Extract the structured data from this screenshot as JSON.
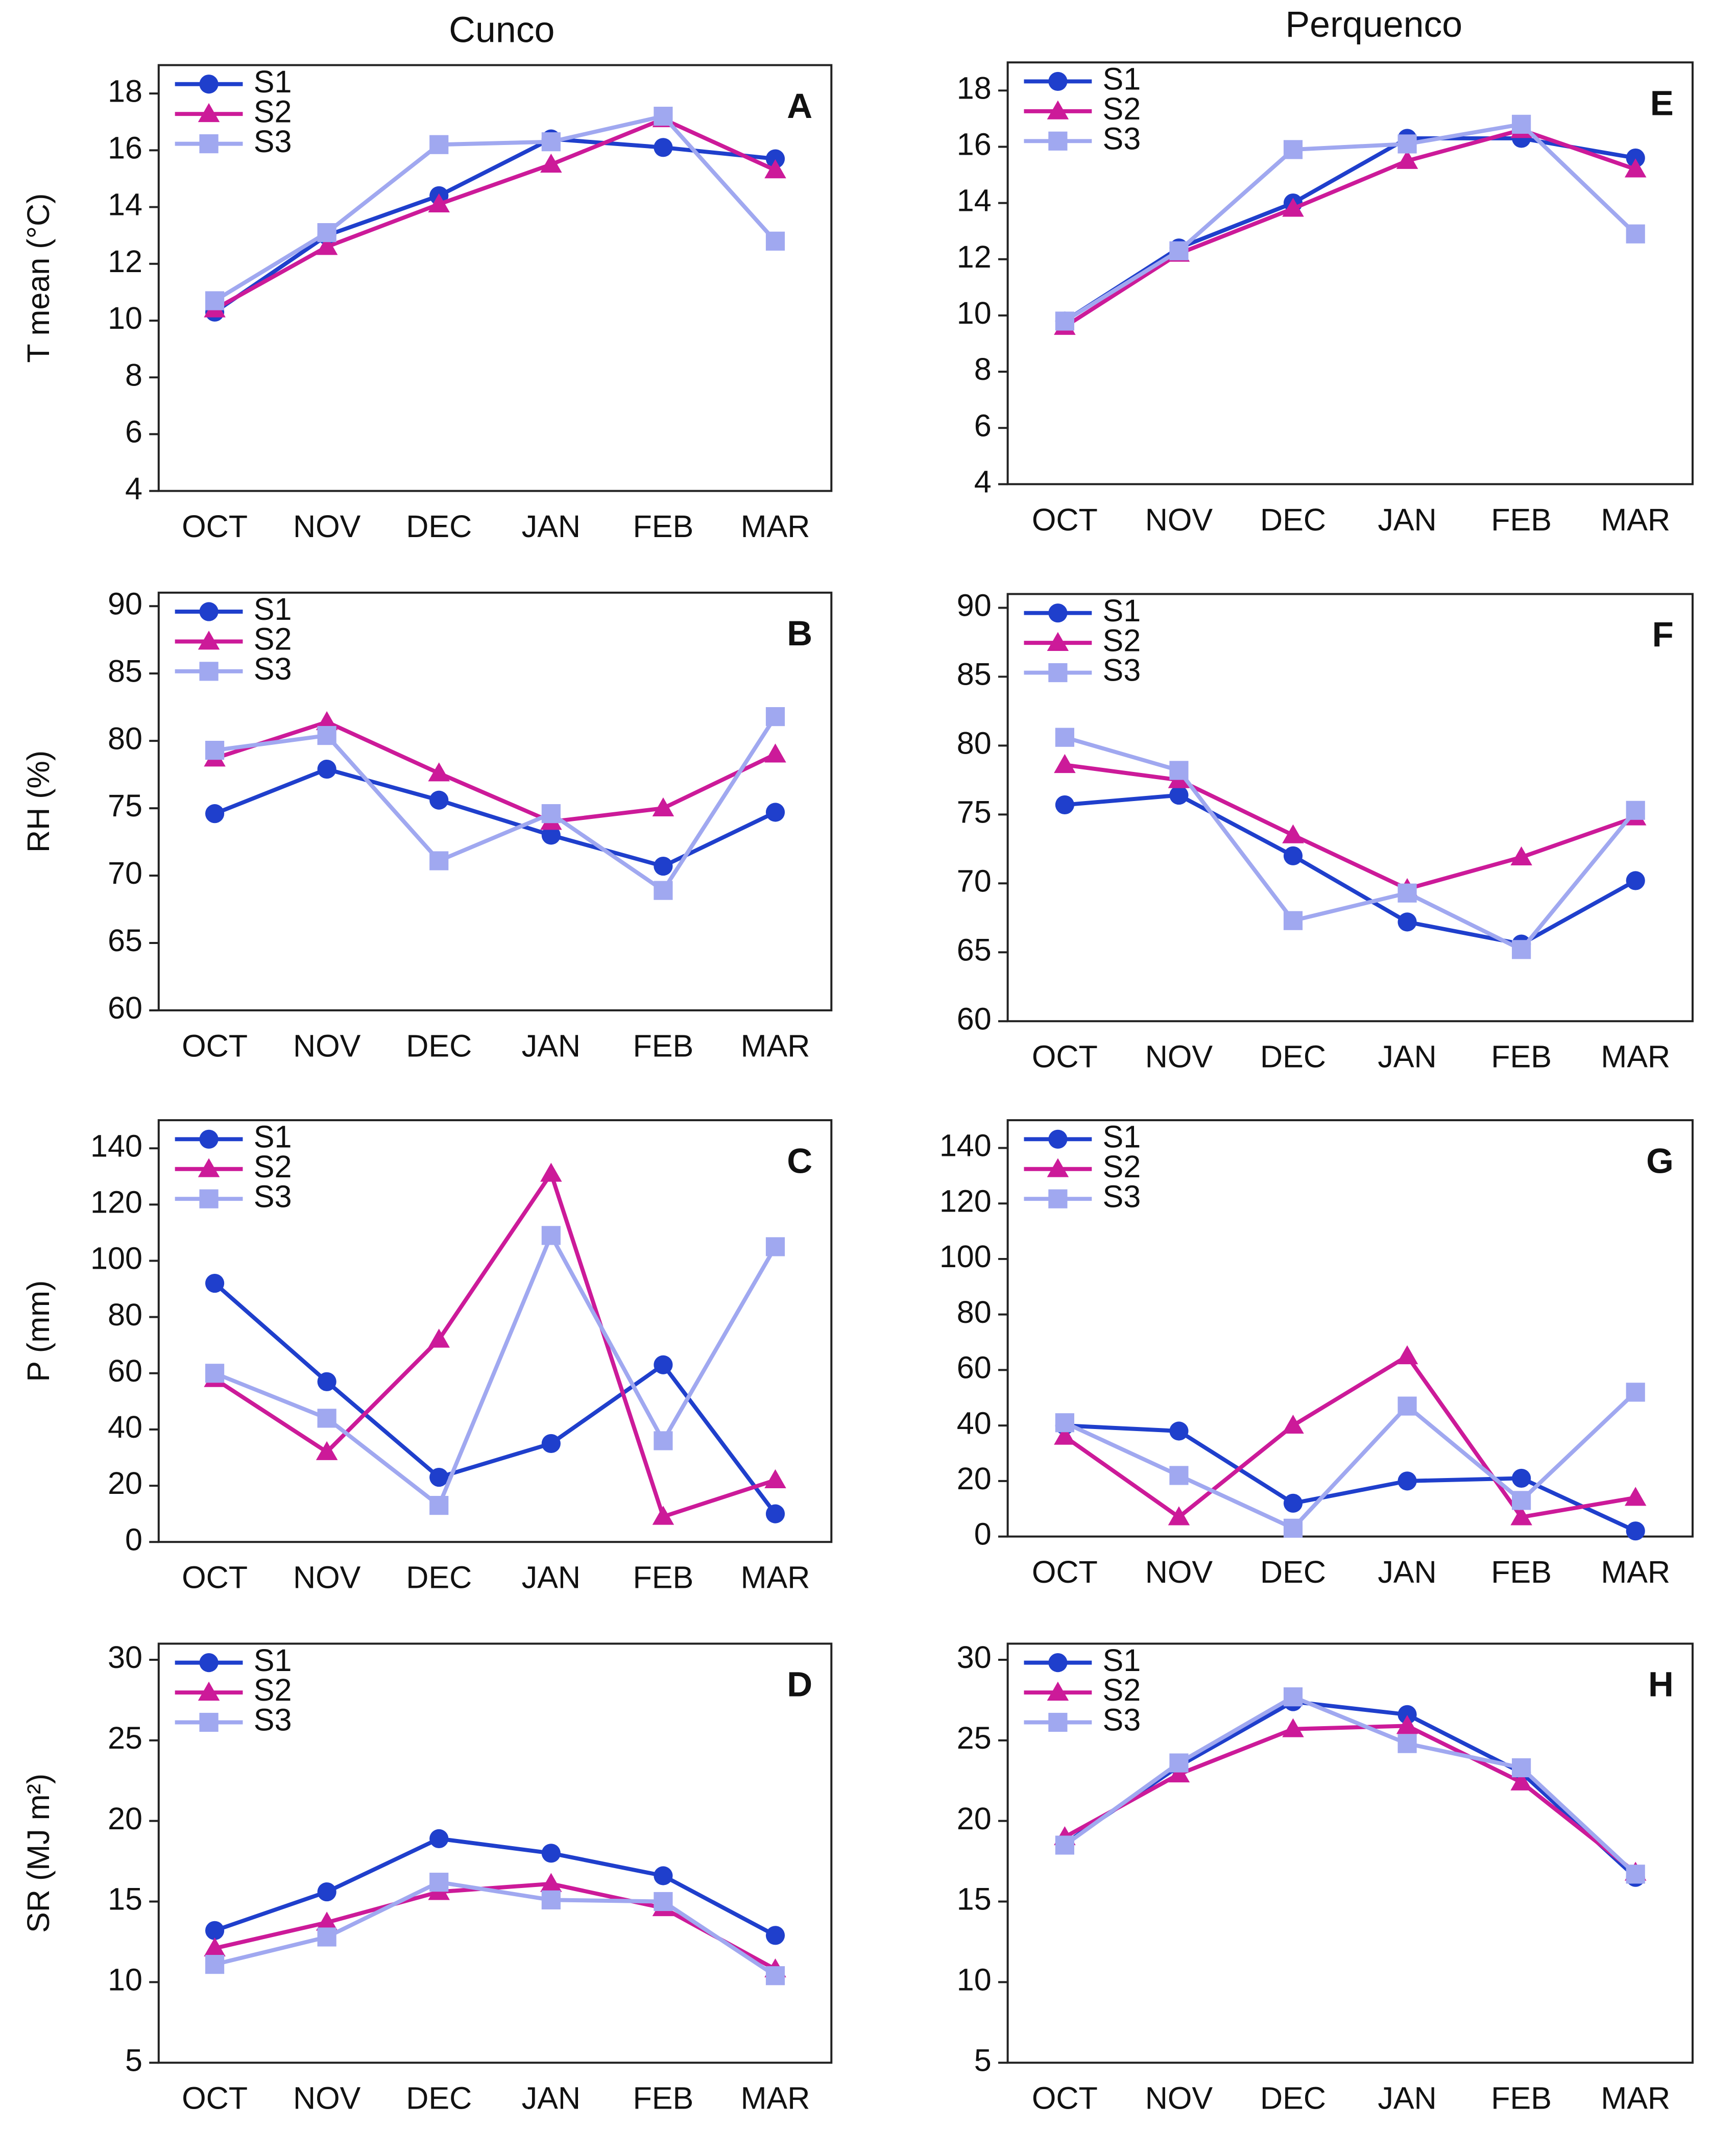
{
  "columns": [
    "Cunco",
    "Perquenco"
  ],
  "chart_data": [
    {
      "type": "line",
      "label": "A",
      "ylabel": "T mean (°C)",
      "categories": [
        "OCT",
        "NOV",
        "DEC",
        "JAN",
        "FEB",
        "MAR"
      ],
      "ylim": [
        4,
        19
      ],
      "yticks": [
        4,
        6,
        8,
        10,
        12,
        14,
        16,
        18
      ],
      "series": [
        {
          "name": "S1",
          "color": "#1f3fcc",
          "marker": "circle",
          "values": [
            10.3,
            13.0,
            14.4,
            16.4,
            16.1,
            15.7
          ]
        },
        {
          "name": "S2",
          "color": "#cc1a99",
          "marker": "triangle",
          "values": [
            10.4,
            12.6,
            14.1,
            15.5,
            17.1,
            15.3
          ]
        },
        {
          "name": "S3",
          "color": "#a0a8f0",
          "marker": "square",
          "values": [
            10.7,
            13.1,
            16.2,
            16.3,
            17.2,
            12.8
          ]
        }
      ]
    },
    {
      "type": "line",
      "label": "E",
      "categories": [
        "OCT",
        "NOV",
        "DEC",
        "JAN",
        "FEB",
        "MAR"
      ],
      "ylim": [
        4,
        19
      ],
      "yticks": [
        4,
        6,
        8,
        10,
        12,
        14,
        16,
        18
      ],
      "series": [
        {
          "name": "S1",
          "color": "#1f3fcc",
          "marker": "circle",
          "values": [
            9.8,
            12.4,
            14.0,
            16.3,
            16.3,
            15.6
          ]
        },
        {
          "name": "S2",
          "color": "#cc1a99",
          "marker": "triangle",
          "values": [
            9.6,
            12.2,
            13.8,
            15.5,
            16.6,
            15.2
          ]
        },
        {
          "name": "S3",
          "color": "#a0a8f0",
          "marker": "square",
          "values": [
            9.8,
            12.3,
            15.9,
            16.1,
            16.8,
            12.9
          ]
        }
      ]
    },
    {
      "type": "line",
      "label": "B",
      "ylabel": "RH (%)",
      "categories": [
        "OCT",
        "NOV",
        "DEC",
        "JAN",
        "FEB",
        "MAR"
      ],
      "ylim": [
        60,
        91
      ],
      "yticks": [
        60,
        65,
        70,
        75,
        80,
        85,
        90
      ],
      "series": [
        {
          "name": "S1",
          "color": "#1f3fcc",
          "marker": "circle",
          "values": [
            74.6,
            77.9,
            75.6,
            73.0,
            70.7,
            74.7
          ]
        },
        {
          "name": "S2",
          "color": "#cc1a99",
          "marker": "triangle",
          "values": [
            78.7,
            81.4,
            77.6,
            74.0,
            75.0,
            79.0
          ]
        },
        {
          "name": "S3",
          "color": "#a0a8f0",
          "marker": "square",
          "values": [
            79.3,
            80.4,
            71.1,
            74.6,
            68.9,
            81.8
          ]
        }
      ]
    },
    {
      "type": "line",
      "label": "F",
      "categories": [
        "OCT",
        "NOV",
        "DEC",
        "JAN",
        "FEB",
        "MAR"
      ],
      "ylim": [
        60,
        91
      ],
      "yticks": [
        60,
        65,
        70,
        75,
        80,
        85,
        90
      ],
      "series": [
        {
          "name": "S1",
          "color": "#1f3fcc",
          "marker": "circle",
          "values": [
            75.7,
            76.4,
            72.0,
            67.2,
            65.6,
            70.2
          ]
        },
        {
          "name": "S2",
          "color": "#cc1a99",
          "marker": "triangle",
          "values": [
            78.6,
            77.5,
            73.5,
            69.6,
            71.9,
            74.8
          ]
        },
        {
          "name": "S3",
          "color": "#a0a8f0",
          "marker": "square",
          "values": [
            80.6,
            78.2,
            67.3,
            69.3,
            65.2,
            75.3
          ]
        }
      ]
    },
    {
      "type": "line",
      "label": "C",
      "ylabel": "P (mm)",
      "categories": [
        "OCT",
        "NOV",
        "DEC",
        "JAN",
        "FEB",
        "MAR"
      ],
      "ylim": [
        0,
        150
      ],
      "yticks": [
        0,
        20,
        40,
        60,
        80,
        100,
        120,
        140
      ],
      "series": [
        {
          "name": "S1",
          "color": "#1f3fcc",
          "marker": "circle",
          "values": [
            92,
            57,
            23,
            35,
            63,
            10
          ]
        },
        {
          "name": "S2",
          "color": "#cc1a99",
          "marker": "triangle",
          "values": [
            58,
            32,
            72,
            131,
            9,
            22
          ]
        },
        {
          "name": "S3",
          "color": "#a0a8f0",
          "marker": "square",
          "values": [
            60,
            44,
            13,
            109,
            36,
            105
          ]
        }
      ]
    },
    {
      "type": "line",
      "label": "G",
      "categories": [
        "OCT",
        "NOV",
        "DEC",
        "JAN",
        "FEB",
        "MAR"
      ],
      "ylim": [
        0,
        150
      ],
      "yticks": [
        0,
        20,
        40,
        60,
        80,
        100,
        120,
        140
      ],
      "series": [
        {
          "name": "S1",
          "color": "#1f3fcc",
          "marker": "circle",
          "values": [
            40,
            38,
            12,
            20,
            21,
            2
          ]
        },
        {
          "name": "S2",
          "color": "#cc1a99",
          "marker": "triangle",
          "values": [
            36,
            7,
            40,
            65,
            7,
            14
          ]
        },
        {
          "name": "S3",
          "color": "#a0a8f0",
          "marker": "square",
          "values": [
            41,
            22,
            3,
            47,
            13,
            52
          ]
        }
      ]
    },
    {
      "type": "line",
      "label": "D",
      "ylabel": "SR (MJ m²)",
      "categories": [
        "OCT",
        "NOV",
        "DEC",
        "JAN",
        "FEB",
        "MAR"
      ],
      "ylim": [
        5,
        31
      ],
      "yticks": [
        5,
        10,
        15,
        20,
        25,
        30
      ],
      "series": [
        {
          "name": "S1",
          "color": "#1f3fcc",
          "marker": "circle",
          "values": [
            13.2,
            15.6,
            18.9,
            18.0,
            16.6,
            12.9
          ]
        },
        {
          "name": "S2",
          "color": "#cc1a99",
          "marker": "triangle",
          "values": [
            12.1,
            13.7,
            15.6,
            16.1,
            14.6,
            10.8
          ]
        },
        {
          "name": "S3",
          "color": "#a0a8f0",
          "marker": "square",
          "values": [
            11.1,
            12.8,
            16.2,
            15.1,
            15.0,
            10.4
          ]
        }
      ]
    },
    {
      "type": "line",
      "label": "H",
      "categories": [
        "OCT",
        "NOV",
        "DEC",
        "JAN",
        "FEB",
        "MAR"
      ],
      "ylim": [
        5,
        31
      ],
      "yticks": [
        5,
        10,
        15,
        20,
        25,
        30
      ],
      "series": [
        {
          "name": "S1",
          "color": "#1f3fcc",
          "marker": "circle",
          "values": [
            18.6,
            23.4,
            27.4,
            26.6,
            23.0,
            16.5
          ]
        },
        {
          "name": "S2",
          "color": "#cc1a99",
          "marker": "triangle",
          "values": [
            19.0,
            22.9,
            25.7,
            25.9,
            22.4,
            16.8
          ]
        },
        {
          "name": "S3",
          "color": "#a0a8f0",
          "marker": "square",
          "values": [
            18.5,
            23.6,
            27.7,
            24.8,
            23.3,
            16.7
          ]
        }
      ]
    }
  ]
}
